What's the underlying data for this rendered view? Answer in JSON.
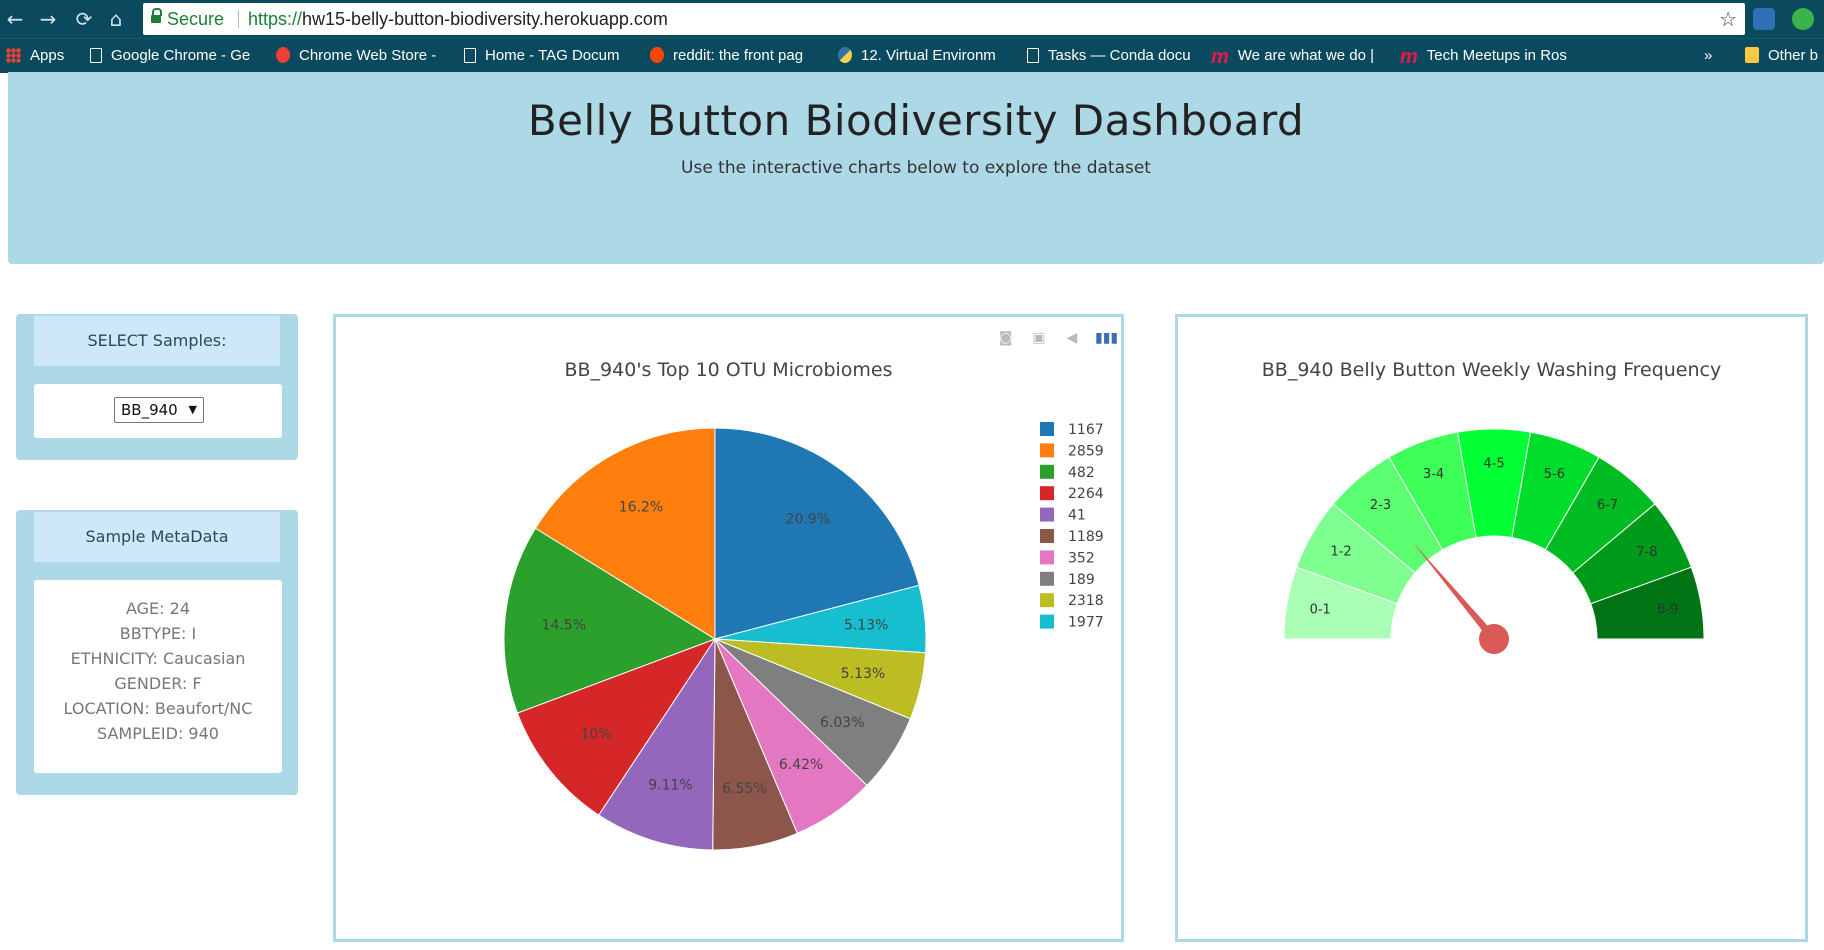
{
  "browser": {
    "secure_label": "Secure",
    "url_scheme": "https://",
    "url_rest": "hw15-belly-button-biodiversity.herokuapp.com",
    "bookmarks": [
      {
        "label": "Apps",
        "icon": "apps-grid-icon"
      },
      {
        "label": "Google Chrome - Ge",
        "icon": "page-icon"
      },
      {
        "label": "Chrome Web Store -",
        "icon": "chrome-webstore-icon"
      },
      {
        "label": "Home - TAG Docum",
        "icon": "page-icon"
      },
      {
        "label": "reddit: the front pag",
        "icon": "reddit-icon"
      },
      {
        "label": "12. Virtual Environm",
        "icon": "python-icon"
      },
      {
        "label": "Tasks — Conda docu",
        "icon": "page-icon"
      },
      {
        "label": "We are what we do |",
        "icon": "meetup-icon"
      },
      {
        "label": "Tech Meetups in Ros",
        "icon": "meetup-icon"
      }
    ],
    "overflow_label": "»",
    "other_bookmarks_label": "Other b"
  },
  "header": {
    "title": "Belly Button Biodiversity Dashboard",
    "subtitle": "Use the interactive charts below to explore the dataset"
  },
  "select_panel": {
    "heading": "SELECT Samples:",
    "selected": "BB_940"
  },
  "metadata_panel": {
    "heading": "Sample MetaData",
    "items": [
      "AGE: 24",
      "BBTYPE: I",
      "ETHNICITY: Caucasian",
      "GENDER: F",
      "LOCATION: Beaufort/NC",
      "SAMPLEID: 940"
    ]
  },
  "chart_data": [
    {
      "type": "pie",
      "title": "BB_940's Top 10 OTU Microbiomes",
      "labels": [
        "1167",
        "2859",
        "482",
        "2264",
        "41",
        "1189",
        "352",
        "189",
        "2318",
        "1977"
      ],
      "values": [
        20.9,
        16.2,
        14.5,
        10.0,
        9.11,
        6.55,
        6.42,
        6.03,
        5.13,
        5.13
      ],
      "slice_labels": [
        "20.9%",
        "16.2%",
        "14.5%",
        "10%",
        "9.11%",
        "6.55%",
        "6.42%",
        "6.03%",
        "5.13%",
        "5.13%"
      ],
      "colors": [
        "#1f77b4",
        "#ff7f0e",
        "#2ca02c",
        "#d62728",
        "#9467bd",
        "#8c564b",
        "#e377c2",
        "#7f7f7f",
        "#bcbd22",
        "#17becf"
      ],
      "legend": "right"
    },
    {
      "type": "gauge",
      "title": "BB_940 Belly Button Weekly Washing Frequency",
      "sections": [
        "0-1",
        "1-2",
        "2-3",
        "3-4",
        "4-5",
        "5-6",
        "6-7",
        "7-8",
        "8-9"
      ],
      "section_colors": [
        "#a8ffb5",
        "#7eff8f",
        "#5cff72",
        "#3dff58",
        "#00ff33",
        "#00dd2a",
        "#00bb22",
        "#009a1b",
        "#007414"
      ],
      "range": [
        0,
        9
      ],
      "value": 2
    }
  ]
}
